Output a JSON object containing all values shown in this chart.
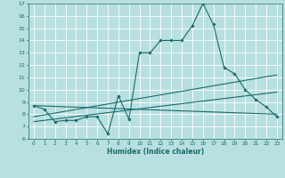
{
  "title": "",
  "xlabel": "Humidex (Indice chaleur)",
  "bg_color": "#b8e0e0",
  "grid_color": "#ffffff",
  "line_color": "#1a6b6b",
  "xlim": [
    -0.5,
    23.5
  ],
  "ylim": [
    6,
    17
  ],
  "xticks": [
    0,
    1,
    2,
    3,
    4,
    5,
    6,
    7,
    8,
    9,
    10,
    11,
    12,
    13,
    14,
    15,
    16,
    17,
    18,
    19,
    20,
    21,
    22,
    23
  ],
  "yticks": [
    6,
    7,
    8,
    9,
    10,
    11,
    12,
    13,
    14,
    15,
    16,
    17
  ],
  "series1_x": [
    0,
    1,
    2,
    3,
    4,
    5,
    6,
    7,
    8,
    9,
    10,
    11,
    12,
    13,
    14,
    15,
    16,
    17,
    18,
    19,
    20,
    21,
    22,
    23
  ],
  "series1_y": [
    8.7,
    8.4,
    7.4,
    7.5,
    7.5,
    7.8,
    7.8,
    6.4,
    9.5,
    7.6,
    13.0,
    13.0,
    14.0,
    14.0,
    14.0,
    15.2,
    17.0,
    15.3,
    11.8,
    11.3,
    10.0,
    9.2,
    8.6,
    7.8
  ],
  "series2_x": [
    0,
    23
  ],
  "series2_y": [
    8.7,
    8.0
  ],
  "series3_x": [
    0,
    23
  ],
  "series3_y": [
    7.8,
    11.2
  ],
  "series4_x": [
    0,
    23
  ],
  "series4_y": [
    7.4,
    9.8
  ]
}
